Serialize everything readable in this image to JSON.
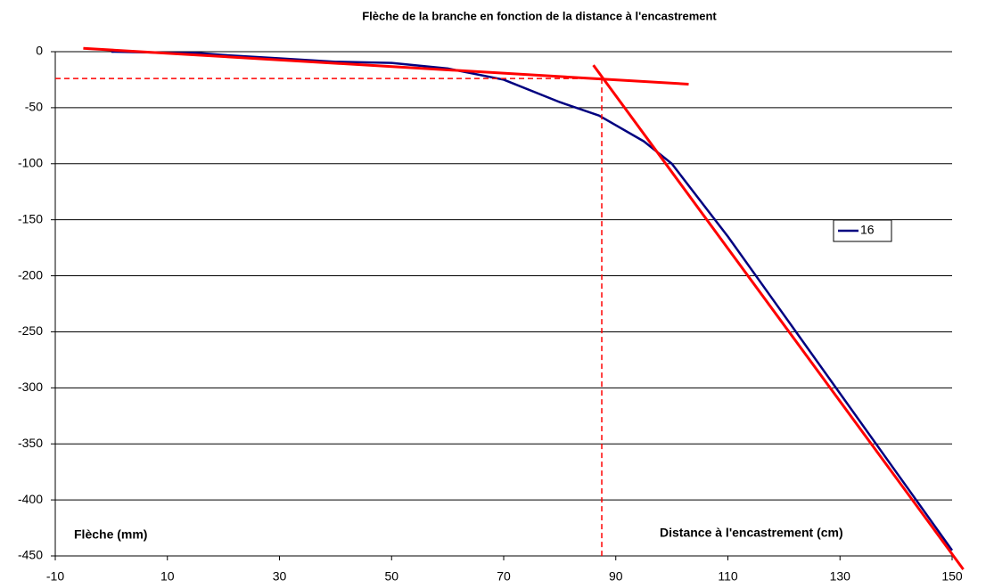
{
  "chart_data": {
    "type": "line",
    "title": "Flèche de la branche en fonction de la distance à l'encastrement",
    "y_label": "Flèche (mm)",
    "x_label": "Distance à l'encastrement (cm)",
    "x": [
      0,
      10,
      15,
      20,
      30,
      40,
      50,
      60,
      70,
      80,
      87,
      95,
      100,
      110,
      120,
      130,
      140,
      150
    ],
    "series": [
      {
        "name": "16",
        "color": "#000080",
        "values": [
          0,
          -1,
          -1,
          -3,
          -6,
          -9,
          -10,
          -15,
          -25,
          -45,
          -57,
          -80,
          -100,
          -165,
          -235,
          -305,
          -375,
          -445
        ]
      }
    ],
    "reference_lines": [
      {
        "x": [
          -5,
          103
        ],
        "y": [
          3,
          -29
        ],
        "color": "#ff0000",
        "dashed": false
      },
      {
        "x": [
          86,
          152
        ],
        "y": [
          -12,
          -462
        ],
        "color": "#ff0000",
        "dashed": false
      },
      {
        "x": [
          -10,
          87.5
        ],
        "y": [
          -24,
          -24
        ],
        "color": "#ff0000",
        "dashed": true
      },
      {
        "x": [
          87.5,
          87.5
        ],
        "y": [
          -24,
          -450
        ],
        "color": "#ff0000",
        "dashed": true
      }
    ],
    "xlim": [
      -10,
      150
    ],
    "xticks": [
      -10,
      10,
      30,
      50,
      70,
      90,
      110,
      130,
      150
    ],
    "ylim": [
      -450,
      0
    ],
    "yticks": [
      0,
      -50,
      -100,
      -150,
      -200,
      -250,
      -300,
      -350,
      -400,
      -450
    ],
    "grid": true,
    "legend": "right"
  }
}
